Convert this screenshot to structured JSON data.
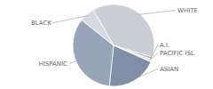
{
  "chart_data": {
    "type": "pie",
    "categories": [
      "WHITE",
      "A.I.",
      "PACIFIC ISL",
      "ASIAN",
      "HISPANIC",
      "BLACK"
    ],
    "values": [
      38,
      1,
      1,
      20,
      34,
      6
    ],
    "colors": [
      "#c9ced6",
      "#aab4c2",
      "#e3e6ea",
      "#7f8fa6",
      "#98a5b8",
      "#d5dae0"
    ]
  }
}
